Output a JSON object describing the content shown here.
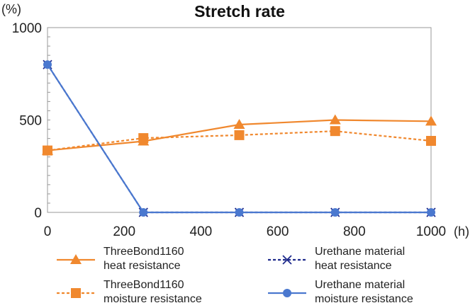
{
  "chart_data": {
    "type": "line",
    "title": "Stretch rate",
    "xlabel": "",
    "ylabel": "",
    "x_unit": "(h)",
    "y_unit": "(%)",
    "xlim": [
      0,
      1000
    ],
    "ylim": [
      0,
      1000
    ],
    "x_ticks": [
      0,
      200,
      400,
      600,
      800,
      1000
    ],
    "y_ticks": [
      0,
      500,
      1000
    ],
    "x": [
      0,
      250,
      500,
      750,
      1000
    ],
    "grid": false,
    "legend_position": "bottom",
    "series": [
      {
        "name_lines": [
          "ThreeBond1160",
          "heat resistance"
        ],
        "values": [
          335,
          385,
          475,
          500,
          493
        ],
        "color": "#f0882e",
        "marker": "triangle",
        "dash": "solid"
      },
      {
        "name_lines": [
          "ThreeBond1160",
          "moisture resistance"
        ],
        "values": [
          335,
          402,
          418,
          440,
          387
        ],
        "color": "#f0882e",
        "marker": "square",
        "dash": "dashed"
      },
      {
        "name_lines": [
          "Urethane material",
          "heat resistance"
        ],
        "values": [
          800,
          0,
          0,
          0,
          0
        ],
        "color": "#1e2a8c",
        "marker": "x",
        "dash": "dashed"
      },
      {
        "name_lines": [
          "Urethane material",
          "moisture resistance"
        ],
        "values": [
          800,
          0,
          0,
          0,
          0
        ],
        "color": "#4a78cf",
        "marker": "circle",
        "dash": "solid"
      }
    ]
  }
}
